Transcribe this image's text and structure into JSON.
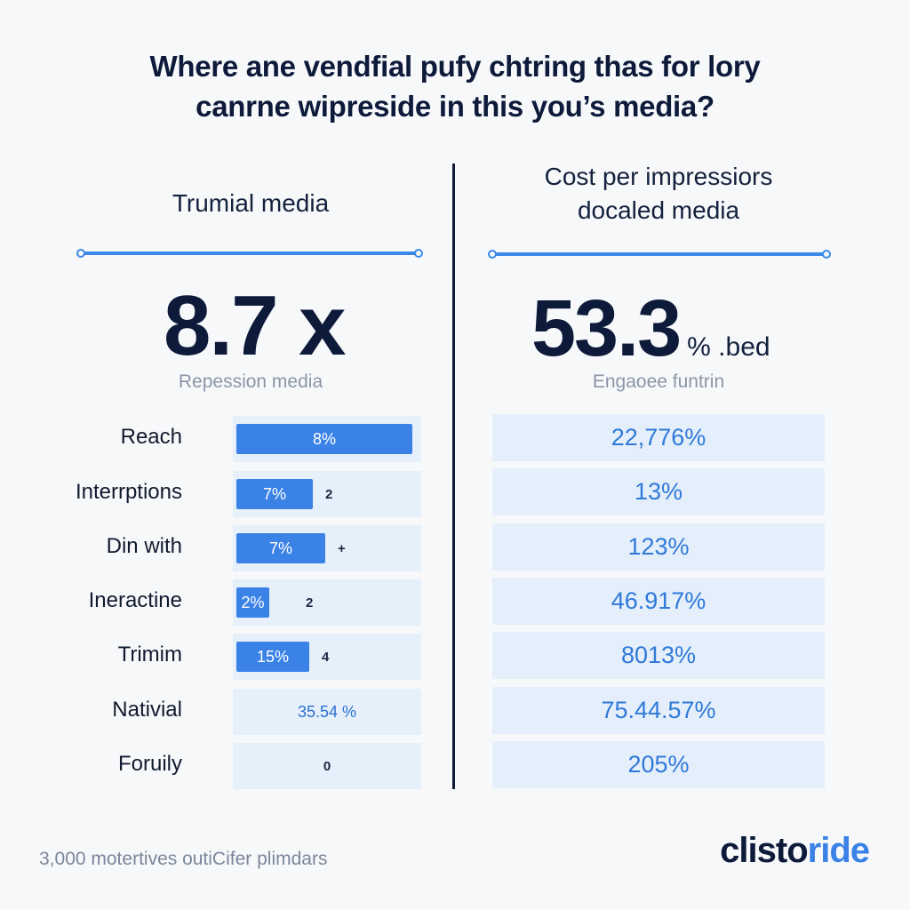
{
  "title": {
    "line1": "Where ane vendfial pufy chtring thas for lory",
    "line2": "canrne wipreside in this you’s media?"
  },
  "left": {
    "heading": "Trumial media",
    "big_value": "8.7 x",
    "caption": "Repession media",
    "rows": [
      {
        "label": "Reach",
        "bar_text": "8%",
        "fill": 0.97,
        "extra": ""
      },
      {
        "label": "Interrptions",
        "bar_text": "7%",
        "fill": 0.42,
        "extra": "2"
      },
      {
        "label": "Din with",
        "bar_text": "7%",
        "fill": 0.49,
        "extra": "+"
      },
      {
        "label": "Ineractine",
        "bar_text": "2%",
        "fill": 0.18,
        "extra": "2"
      },
      {
        "label": "Trimim",
        "bar_text": "15%",
        "fill": 0.4,
        "extra": "4"
      },
      {
        "label": "Nativial",
        "bar_text": "35.54 %",
        "fill": 0,
        "extra": ""
      },
      {
        "label": "Foruily",
        "bar_text": "0",
        "fill": 0,
        "extra": ""
      }
    ]
  },
  "right": {
    "heading_line1": "Cost per impressiors",
    "heading_line2": "docaled media",
    "big_value": "53.3",
    "big_suffix": "% .bed",
    "caption": "Engaoee funtrin",
    "values": [
      "22,776%",
      "13%",
      "123%",
      "46.917%",
      "8013%",
      "75.44.57%",
      "205%"
    ]
  },
  "footer": {
    "note": "3,000 motertives outiCifer plimdars"
  },
  "logo": {
    "part1": "clisto",
    "part2": "ride"
  },
  "colors": {
    "accent": "#3b82e6",
    "dark": "#0d1a3a",
    "cell_bg": "#e4effb"
  }
}
